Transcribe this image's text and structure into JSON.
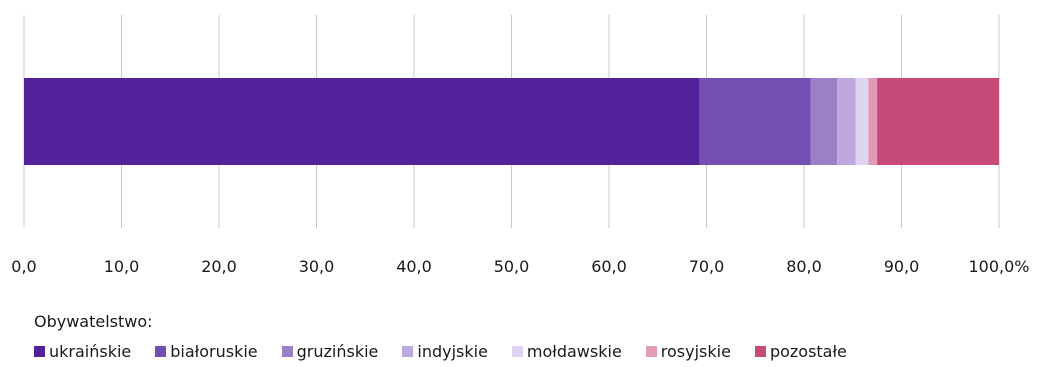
{
  "chart_data": {
    "type": "bar",
    "orientation": "horizontal",
    "stacked": true,
    "xlim": [
      0,
      100
    ],
    "x_ticks": [
      "0,0",
      "10,0",
      "20,0",
      "30,0",
      "40,0",
      "50,0",
      "60,0",
      "70,0",
      "80,0",
      "90,0",
      "100,0%"
    ],
    "grid": "vertical",
    "legend_title": "Obywatelstwo:",
    "legend_position": "bottom",
    "series": [
      {
        "name": "ukraińskie",
        "value": 69.3,
        "color": "#51229a"
      },
      {
        "name": "białoruskie",
        "value": 11.4,
        "color": "#7450b2"
      },
      {
        "name": "gruzińskie",
        "value": 2.7,
        "color": "#9b80c8"
      },
      {
        "name": "indyjskie",
        "value": 1.9,
        "color": "#bda9dd"
      },
      {
        "name": "mołdawskie",
        "value": 1.3,
        "color": "#ded3f0"
      },
      {
        "name": "rosyjskie",
        "value": 0.9,
        "color": "#e39ab6"
      },
      {
        "name": "pozostałe",
        "value": 12.5,
        "color": "#c54a77"
      }
    ]
  }
}
